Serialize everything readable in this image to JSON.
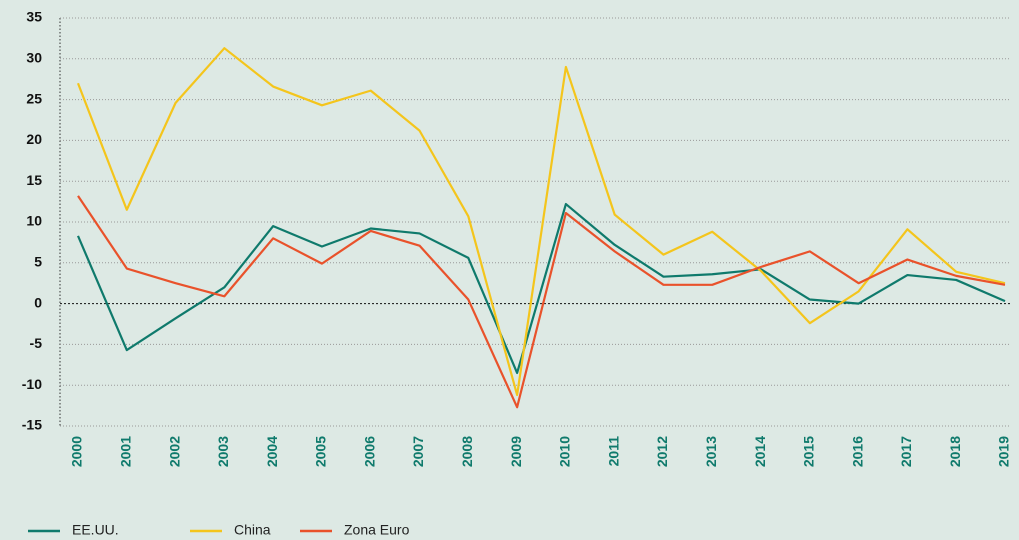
{
  "chart_data": {
    "type": "line",
    "categories": [
      "2000",
      "2001",
      "2002",
      "2003",
      "2004",
      "2005",
      "2006",
      "2007",
      "2008",
      "2009",
      "2010",
      "2011",
      "2012",
      "2013",
      "2014",
      "2015",
      "2016",
      "2017",
      "2018",
      "2019"
    ],
    "series": [
      {
        "name": "EE.UU.",
        "color": "#0f7a6c",
        "values": [
          8.3,
          -5.7,
          -1.8,
          2.0,
          9.5,
          7.0,
          9.2,
          8.6,
          5.6,
          -8.5,
          12.2,
          7.2,
          3.3,
          3.6,
          4.2,
          0.5,
          0.0,
          3.5,
          2.9,
          0.3
        ]
      },
      {
        "name": "China",
        "color": "#f4c51c",
        "values": [
          27.0,
          11.5,
          24.6,
          31.3,
          26.6,
          24.3,
          26.1,
          21.2,
          10.7,
          -11.2,
          29.0,
          10.9,
          6.0,
          8.8,
          4.0,
          -2.4,
          1.5,
          9.1,
          3.9,
          2.5
        ]
      },
      {
        "name": "Zona Euro",
        "color": "#e9522b",
        "values": [
          13.2,
          4.3,
          2.5,
          0.9,
          8.0,
          4.9,
          8.9,
          7.1,
          0.5,
          -12.7,
          11.1,
          6.4,
          2.3,
          2.3,
          4.5,
          6.4,
          2.5,
          5.4,
          3.4,
          2.3
        ]
      }
    ],
    "ylim": [
      -15,
      35
    ],
    "yticks": [
      -15,
      -10,
      -5,
      0,
      5,
      10,
      15,
      20,
      25,
      30,
      35
    ],
    "grid": true,
    "legend": "bottom-left"
  }
}
